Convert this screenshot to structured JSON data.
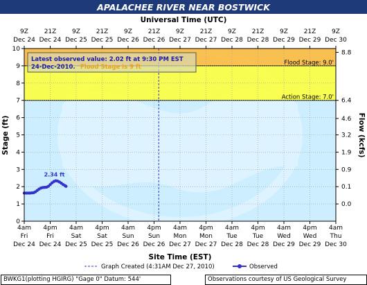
{
  "chart_data": {
    "type": "line",
    "title": "APALACHEE RIVER NEAR BOSTWICK",
    "top_axis_title": "Universal Time (UTC)",
    "xlabel": "Site Time (EST)",
    "ylabel": "Stage (ft)",
    "ylabel_right": "Flow (kcfs)",
    "ylim": [
      0,
      10
    ],
    "xlim": [
      "2010-12-24 04:00",
      "2010-12-31 04:00"
    ],
    "y_ticks": [
      "0",
      "1",
      "2",
      "3",
      "4",
      "5",
      "6",
      "7",
      "8",
      "9",
      "10"
    ],
    "right_ticks": [
      {
        "stage": 9.78,
        "label": "8.8"
      },
      {
        "stage": 7.0,
        "label": "6.4"
      },
      {
        "stage": 5.95,
        "label": "4.6"
      },
      {
        "stage": 5.0,
        "label": "3.2"
      },
      {
        "stage": 4.0,
        "label": "1.9"
      },
      {
        "stage": 3.0,
        "label": "0.9"
      },
      {
        "stage": 2.0,
        "label": "0.1"
      },
      {
        "stage": 1.0,
        "label": "0.0"
      }
    ],
    "bottom_ticks": [
      {
        "time": "4am",
        "day": "Fri",
        "date": "Dec 24"
      },
      {
        "time": "4pm",
        "day": "Fri",
        "date": "Dec 24"
      },
      {
        "time": "4am",
        "day": "Sat",
        "date": "Dec 25"
      },
      {
        "time": "4pm",
        "day": "Sat",
        "date": "Dec 25"
      },
      {
        "time": "4am",
        "day": "Sun",
        "date": "Dec 26"
      },
      {
        "time": "4pm",
        "day": "Sun",
        "date": "Dec 26"
      },
      {
        "time": "4am",
        "day": "Mon",
        "date": "Dec 27"
      },
      {
        "time": "4pm",
        "day": "Mon",
        "date": "Dec 27"
      },
      {
        "time": "4am",
        "day": "Tue",
        "date": "Dec 28"
      },
      {
        "time": "4pm",
        "day": "Tue",
        "date": "Dec 28"
      },
      {
        "time": "4am",
        "day": "Wed",
        "date": "Dec 29"
      },
      {
        "time": "4pm",
        "day": "Wed",
        "date": "Dec 29"
      },
      {
        "time": "4am",
        "day": "Thu",
        "date": "Dec 30"
      }
    ],
    "top_ticks": [
      {
        "time": "9Z",
        "date": "Dec 24"
      },
      {
        "time": "21Z",
        "date": "Dec 24"
      },
      {
        "time": "9Z",
        "date": "Dec 25"
      },
      {
        "time": "21Z",
        "date": "Dec 25"
      },
      {
        "time": "9Z",
        "date": "Dec 26"
      },
      {
        "time": "21Z",
        "date": "Dec 26"
      },
      {
        "time": "9Z",
        "date": "Dec 27"
      },
      {
        "time": "21Z",
        "date": "Dec 27"
      },
      {
        "time": "9Z",
        "date": "Dec 28"
      },
      {
        "time": "21Z",
        "date": "Dec 28"
      },
      {
        "time": "9Z",
        "date": "Dec 29"
      },
      {
        "time": "21Z",
        "date": "Dec 29"
      },
      {
        "time": "9Z",
        "date": "Dec 30"
      }
    ],
    "bands": [
      {
        "name": "flood",
        "from": 9.0,
        "to": 10.0,
        "color": "#FFB733"
      },
      {
        "name": "action",
        "from": 7.0,
        "to": 9.0,
        "color": "#FFFF33"
      }
    ],
    "thresholds": [
      {
        "label": "Flood Stage: 9.0'",
        "value": 9.0
      },
      {
        "label": "Action Stage: 7.0'",
        "value": 7.0
      }
    ],
    "graph_created_line": {
      "x": "2010-12-27 04:31",
      "label": "Graph Created (4:31AM Dec 27, 2010)"
    },
    "series": [
      {
        "name": "Observed",
        "color": "#3333CC",
        "points": [
          [
            "2010-12-24 04:00",
            1.63
          ],
          [
            "2010-12-24 05:00",
            1.63
          ],
          [
            "2010-12-24 06:00",
            1.63
          ],
          [
            "2010-12-24 07:00",
            1.63
          ],
          [
            "2010-12-24 08:00",
            1.64
          ],
          [
            "2010-12-24 09:00",
            1.65
          ],
          [
            "2010-12-24 10:00",
            1.7
          ],
          [
            "2010-12-24 11:00",
            1.78
          ],
          [
            "2010-12-24 12:00",
            1.86
          ],
          [
            "2010-12-24 13:00",
            1.92
          ],
          [
            "2010-12-24 14:00",
            1.95
          ],
          [
            "2010-12-24 15:00",
            1.96
          ],
          [
            "2010-12-24 16:00",
            1.97
          ],
          [
            "2010-12-24 17:00",
            2.02
          ],
          [
            "2010-12-24 18:00",
            2.12
          ],
          [
            "2010-12-24 19:00",
            2.22
          ],
          [
            "2010-12-24 20:00",
            2.3
          ],
          [
            "2010-12-24 21:00",
            2.34
          ],
          [
            "2010-12-24 22:00",
            2.32
          ],
          [
            "2010-12-24 23:00",
            2.27
          ],
          [
            "2010-12-25 00:00",
            2.2
          ],
          [
            "2010-12-25 01:00",
            2.12
          ],
          [
            "2010-12-25 02:00",
            2.06
          ],
          [
            "2010-12-25 02:30",
            2.02
          ]
        ]
      }
    ],
    "peak_label": "2.34 ft",
    "annotation": {
      "line1": "Latest observed value: 2.02 ft at 9:30 PM EST",
      "line2": "24-Dec-2010.",
      "line3": "Flood Stage is 9 ft"
    },
    "legend": {
      "graph_created": "Graph Created (4:31AM Dec 27, 2010)",
      "observed": "Observed"
    },
    "watermark": "NOAA",
    "colors": {
      "background": "#CCEEFF",
      "grid": "#9999AA",
      "action_band": "#FFFF33",
      "flood_band": "#FFB733",
      "observed": "#3333CC",
      "title_bar": "#1E3A78"
    }
  },
  "footer": {
    "left": "BWKG1(plotting HGIRG) \"Gage 0\" Datum: 544'",
    "right": "Observations courtesy of US Geological Survey"
  }
}
